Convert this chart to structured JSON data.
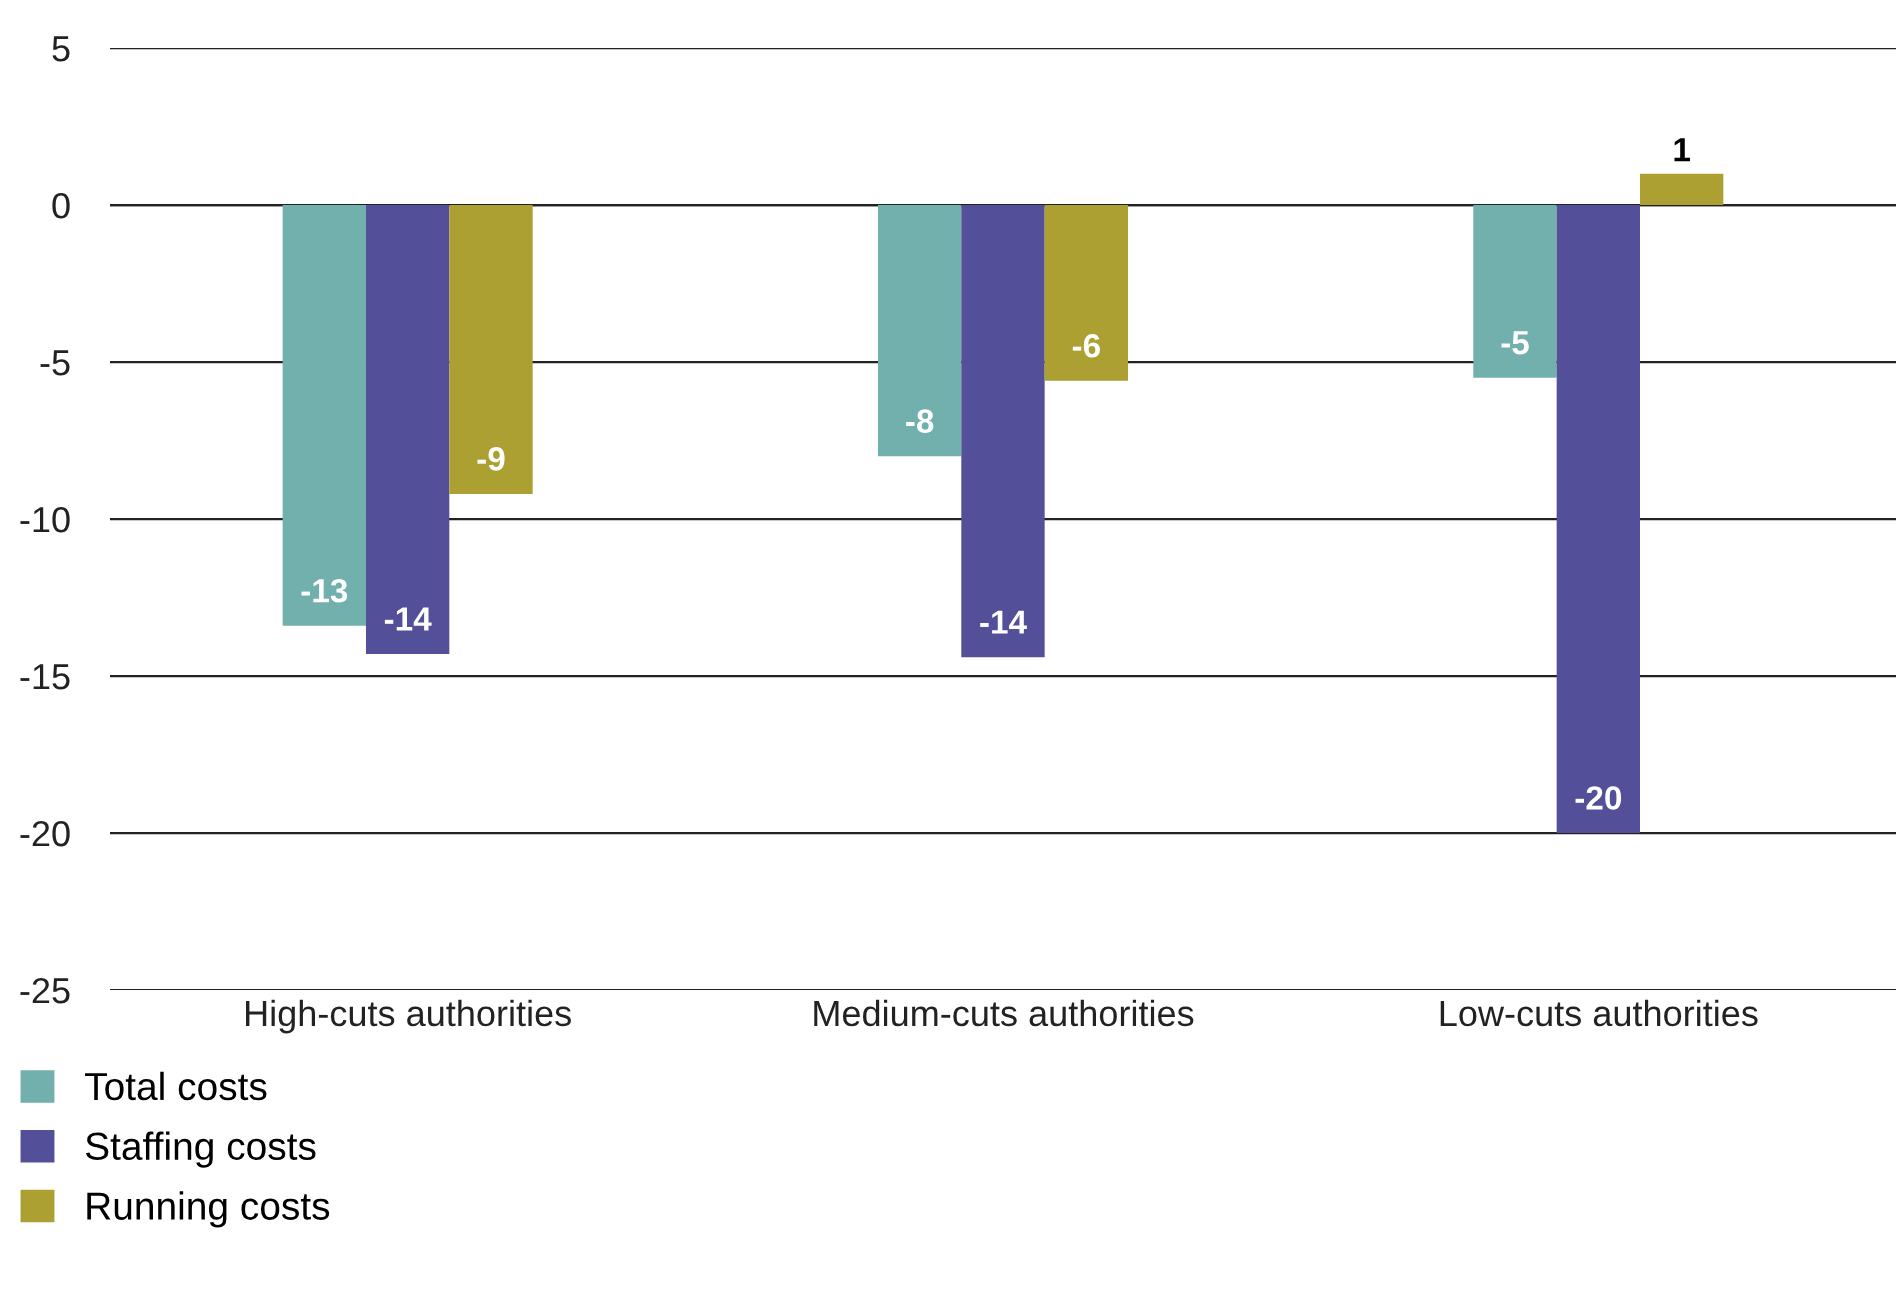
{
  "chart_data": {
    "type": "bar",
    "categories": [
      "High-cuts authorities",
      "Medium-cuts authorities",
      "Low-cuts authorities"
    ],
    "series": [
      {
        "name": "Total costs",
        "color": "#72b0ae",
        "values": [
          -13.4,
          -8.0,
          -5.5
        ],
        "value_labels": [
          "-13",
          "-8",
          "-5"
        ]
      },
      {
        "name": "Staffing costs",
        "color": "#534f99",
        "values": [
          -14.3,
          -14.4,
          -20.0
        ],
        "value_labels": [
          "-14",
          "-14",
          "-20"
        ]
      },
      {
        "name": "Running costs",
        "color": "#aba031",
        "values": [
          -9.2,
          -5.6,
          1.0
        ],
        "value_labels": [
          "-9",
          "-6",
          "1"
        ]
      }
    ],
    "ylim": [
      -25,
      5
    ],
    "yticks": [
      -25,
      -20,
      -15,
      -10,
      -5,
      0,
      5
    ],
    "grid": "y",
    "legend": "bottom left"
  }
}
